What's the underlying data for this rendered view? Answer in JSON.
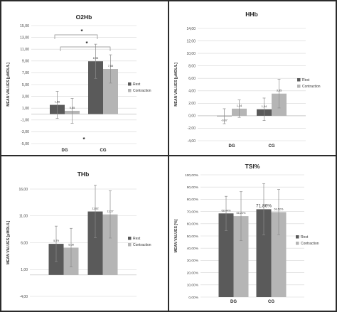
{
  "chart_data": [
    {
      "type": "bar",
      "title": "O2Hb",
      "ylabel": "MEAN VALUES [μMOL/L]",
      "categories": [
        "DG",
        "CG"
      ],
      "ylim": [
        -5,
        15
      ],
      "yticks": [
        "-5,00",
        "-3,00",
        "-1,00",
        "1,00",
        "3,00",
        "5,00",
        "7,00",
        "9,00",
        "11,00",
        "13,00",
        "15,00"
      ],
      "tick_values": [
        -5,
        -3,
        -1,
        1,
        3,
        5,
        7,
        9,
        11,
        13,
        15
      ],
      "series": [
        {
          "name": "Rest",
          "values": [
            1.56,
            8.95
          ],
          "labels": [
            "1,56",
            "8,95"
          ],
          "err": [
            2.3,
            2.9
          ]
        },
        {
          "name": "Contraction",
          "values": [
            0.55,
            7.65
          ],
          "labels": [
            "0,55",
            "7,65"
          ],
          "err": [
            2.1,
            2.4
          ]
        }
      ],
      "annotations": [
        "*",
        "*",
        "*"
      ],
      "colors": [
        "#5a5a5a",
        "#b5b5b5"
      ],
      "legend": "right"
    },
    {
      "type": "bar",
      "title": "HHb",
      "ylabel": "MEAN VALUES [μMOL/L]",
      "categories": [
        "DG",
        "CG"
      ],
      "ylim": [
        -4,
        14
      ],
      "yticks": [
        "-4,00",
        "-2,00",
        "0,00",
        "2,00",
        "4,00",
        "6,00",
        "8,00",
        "10,00",
        "12,00",
        "14,00"
      ],
      "tick_values": [
        -4,
        -2,
        0,
        2,
        4,
        6,
        8,
        10,
        12,
        14
      ],
      "series": [
        {
          "name": "Rest",
          "values": [
            -0.07,
            1.04
          ],
          "labels": [
            "-0,07",
            "1,04"
          ],
          "err": [
            1.2,
            1.8
          ]
        },
        {
          "name": "Contraction",
          "values": [
            1.14,
            3.55
          ],
          "labels": [
            "1,14",
            "3,55"
          ],
          "err": [
            1.4,
            2.3
          ]
        }
      ],
      "colors": [
        "#5a5a5a",
        "#b5b5b5"
      ],
      "legend": "right"
    },
    {
      "type": "bar",
      "title": "THb",
      "ylabel": "MEAN VALUES [μMOL/L]",
      "categories": [
        "DG",
        "CG"
      ],
      "ylim": [
        -4,
        16
      ],
      "yticks": [
        "-4,00",
        "1,00",
        "6,00",
        "11,00",
        "16,00"
      ],
      "tick_values": [
        -4,
        1,
        6,
        11,
        16
      ],
      "series": [
        {
          "name": "Rest",
          "values": [
            5.79,
            11.82
          ],
          "labels": [
            "5,79",
            "11,82"
          ],
          "err": [
            3.3,
            4.9
          ]
        },
        {
          "name": "Contraction",
          "values": [
            5.08,
            11.27
          ],
          "labels": [
            "5,08",
            "11,27"
          ],
          "err": [
            3.6,
            4.4
          ]
        }
      ],
      "colors": [
        "#5a5a5a",
        "#b5b5b5"
      ],
      "legend": "right"
    },
    {
      "type": "bar",
      "title": "TSI%",
      "ylabel": "MEAN VALUES [%]",
      "categories": [
        "DG",
        "CG"
      ],
      "ylim": [
        0,
        100
      ],
      "yticks": [
        "0,00%",
        "10,00%",
        "20,00%",
        "30,00%",
        "40,00%",
        "50,00%",
        "60,00%",
        "70,00%",
        "80,00%",
        "90,00%",
        "100,00%"
      ],
      "tick_values": [
        0,
        10,
        20,
        30,
        40,
        50,
        60,
        70,
        80,
        90,
        100
      ],
      "series": [
        {
          "name": "Rest",
          "values": [
            68.44,
            71.86
          ],
          "labels": [
            "68,44%",
            "71,86%"
          ],
          "err": [
            14.0,
            21.0
          ]
        },
        {
          "name": "Contraction",
          "values": [
            66.22,
            69.52
          ],
          "labels": [
            "66,22%",
            "69,52%"
          ],
          "err": [
            20.0,
            18.5
          ]
        }
      ],
      "colors": [
        "#5a5a5a",
        "#b5b5b5"
      ],
      "legend": "right"
    }
  ]
}
